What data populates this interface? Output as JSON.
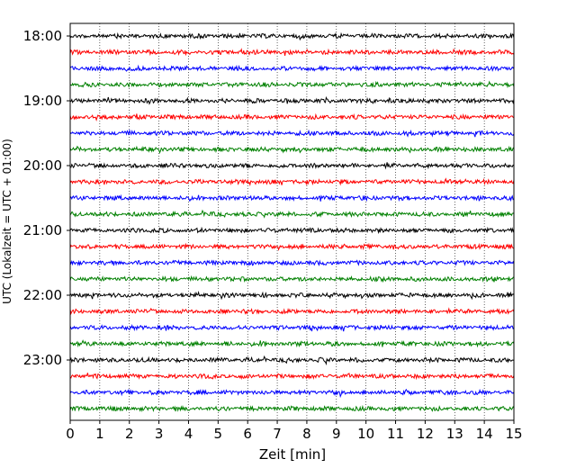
{
  "chart_data": {
    "type": "line",
    "title": "",
    "xlabel": "Zeit  [min]",
    "ylabel": "UTC (Lokalzeit = UTC + 01:00)",
    "xlim": [
      0,
      15
    ],
    "x_ticks": [
      "0",
      "1",
      "2",
      "3",
      "4",
      "5",
      "6",
      "7",
      "8",
      "9",
      "10",
      "11",
      "12",
      "13",
      "14",
      "15"
    ],
    "y_tick_labels": [
      "18:00",
      "19:00",
      "20:00",
      "21:00",
      "22:00",
      "23:00"
    ],
    "grid": "vertical dotted at each minute",
    "colors": [
      "#000000",
      "#ff0000",
      "#0000ff",
      "#008000"
    ],
    "series": [
      {
        "start": "18:00",
        "color": "#000000"
      },
      {
        "start": "18:15",
        "color": "#ff0000"
      },
      {
        "start": "18:30",
        "color": "#0000ff"
      },
      {
        "start": "18:45",
        "color": "#008000"
      },
      {
        "start": "19:00",
        "color": "#000000"
      },
      {
        "start": "19:15",
        "color": "#ff0000"
      },
      {
        "start": "19:30",
        "color": "#0000ff"
      },
      {
        "start": "19:45",
        "color": "#008000"
      },
      {
        "start": "20:00",
        "color": "#000000"
      },
      {
        "start": "20:15",
        "color": "#ff0000"
      },
      {
        "start": "20:30",
        "color": "#0000ff"
      },
      {
        "start": "20:45",
        "color": "#008000"
      },
      {
        "start": "21:00",
        "color": "#000000"
      },
      {
        "start": "21:15",
        "color": "#ff0000"
      },
      {
        "start": "21:30",
        "color": "#0000ff"
      },
      {
        "start": "21:45",
        "color": "#008000"
      },
      {
        "start": "22:00",
        "color": "#000000"
      },
      {
        "start": "22:15",
        "color": "#ff0000"
      },
      {
        "start": "22:30",
        "color": "#0000ff"
      },
      {
        "start": "22:45",
        "color": "#008000"
      },
      {
        "start": "23:00",
        "color": "#000000"
      },
      {
        "start": "23:15",
        "color": "#ff0000"
      },
      {
        "start": "23:30",
        "color": "#0000ff"
      },
      {
        "start": "23:45",
        "color": "#008000"
      }
    ]
  }
}
